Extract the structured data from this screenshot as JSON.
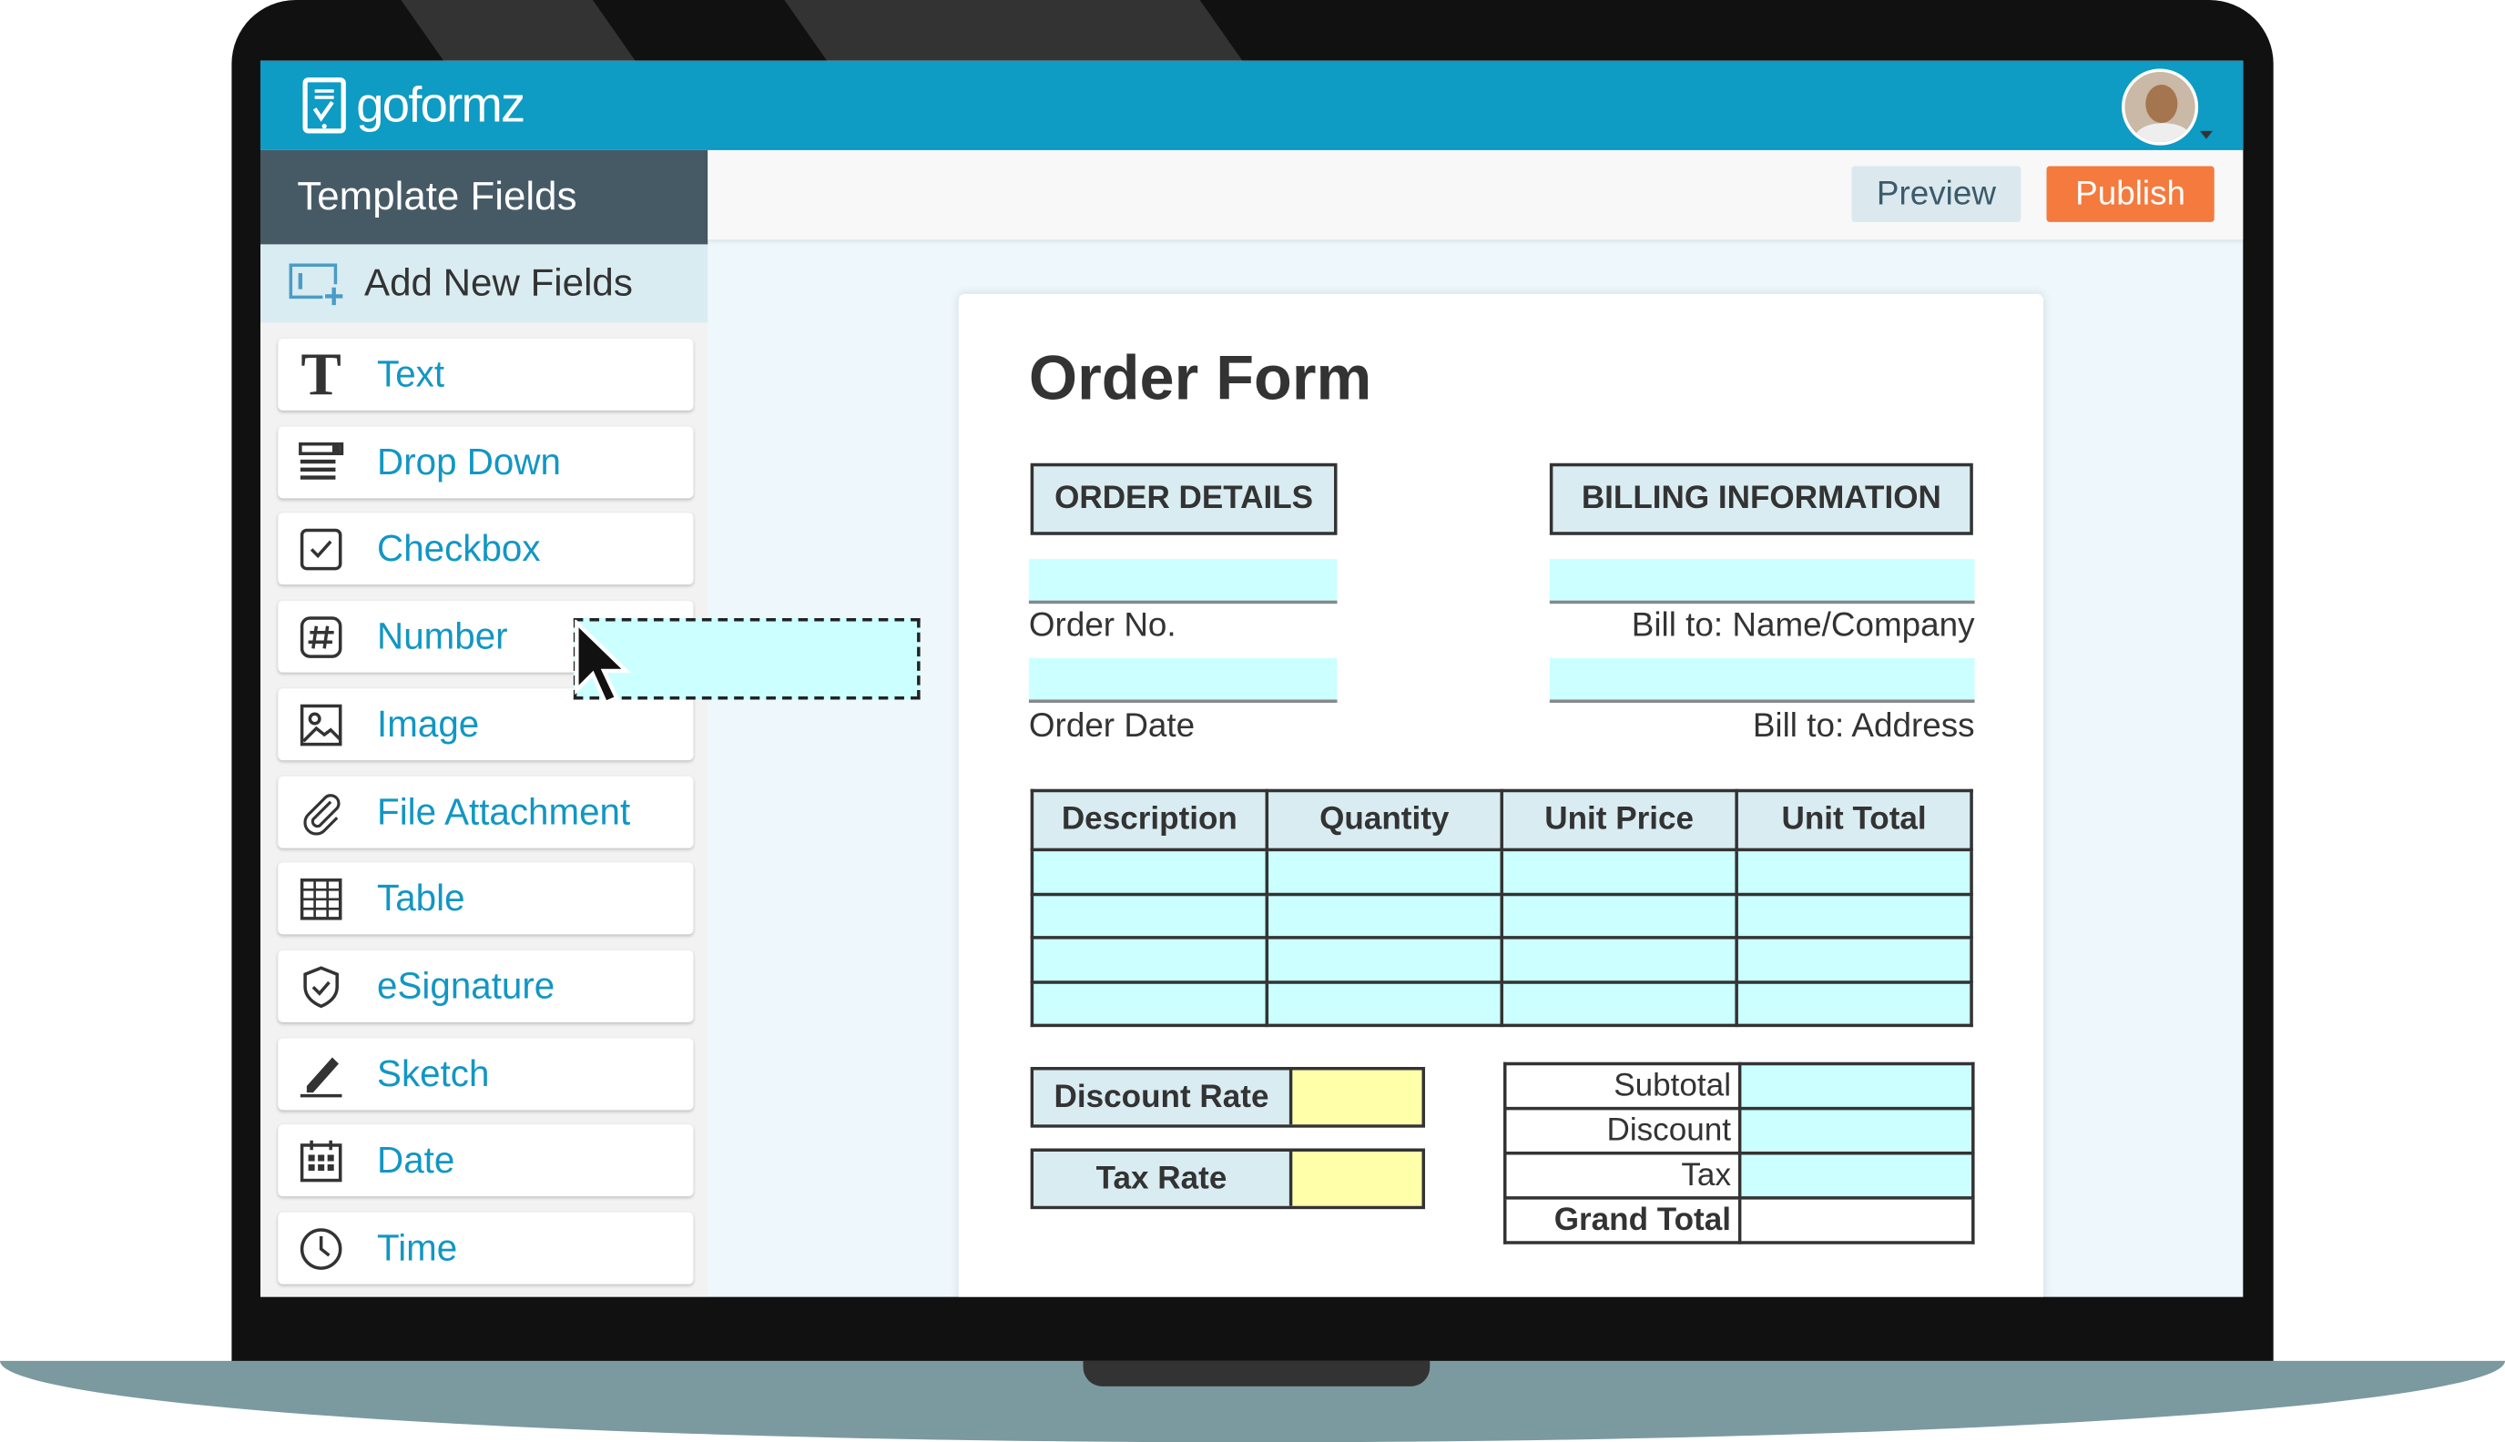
{
  "app": {
    "logo_text": "goformz",
    "brand_color": "#0e9bc4",
    "accent_color": "#f47a3e"
  },
  "sidebar": {
    "title": "Template Fields",
    "add_new": "Add New Fields",
    "items": [
      {
        "label": "Text",
        "icon": "text-icon"
      },
      {
        "label": "Drop Down",
        "icon": "dropdown-icon"
      },
      {
        "label": "Checkbox",
        "icon": "checkbox-icon"
      },
      {
        "label": "Number",
        "icon": "hash-icon"
      },
      {
        "label": "Image",
        "icon": "image-icon"
      },
      {
        "label": "File Attachment",
        "icon": "paperclip-icon"
      },
      {
        "label": "Table",
        "icon": "table-icon"
      },
      {
        "label": "eSignature",
        "icon": "shield-check-icon"
      },
      {
        "label": "Sketch",
        "icon": "pen-icon"
      },
      {
        "label": "Date",
        "icon": "calendar-icon"
      },
      {
        "label": "Time",
        "icon": "clock-icon"
      }
    ]
  },
  "toolbar": {
    "preview": "Preview",
    "publish": "Publish"
  },
  "form": {
    "title": "Order Form",
    "order_details": "ORDER DETAILS",
    "billing": "BILLING INFORMATION",
    "order_no": "Order No.",
    "order_date": "Order Date",
    "bill_name": "Bill to: Name/Company",
    "bill_address": "Bill to: Address",
    "table_headers": [
      "Description",
      "Quantity",
      "Unit Price",
      "Unit Total"
    ],
    "discount_rate": "Discount Rate",
    "tax_rate": "Tax Rate",
    "totals": [
      "Subtotal",
      "Discount",
      "Tax",
      "Grand Total"
    ]
  }
}
